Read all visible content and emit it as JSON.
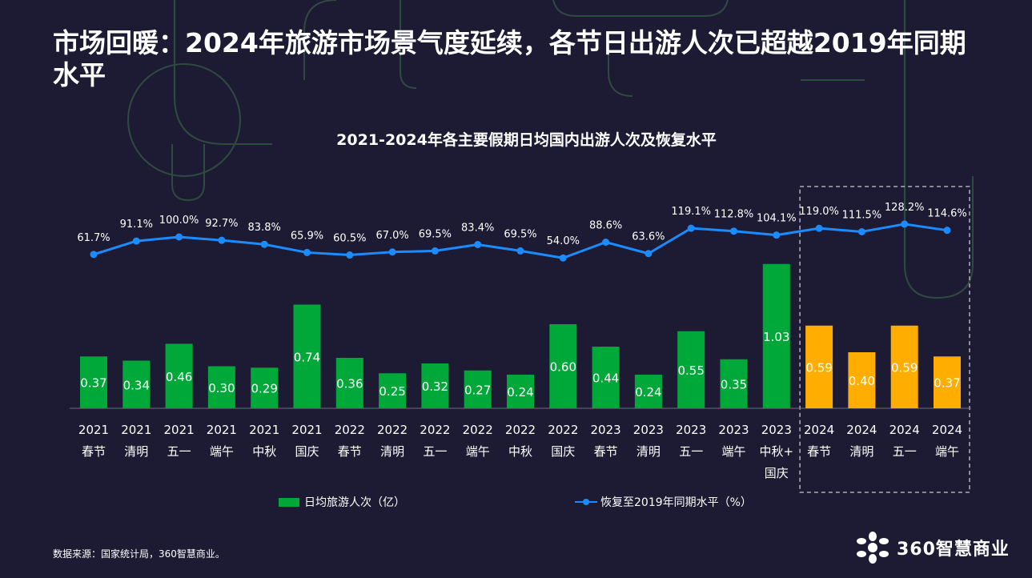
{
  "header": {
    "title": "市场回暖：2024年旅游市场景气度延续，各节日出游人次已超越2019年同期水平"
  },
  "chart_data": {
    "type": "bar",
    "title": "2021-2024年各主要假期日均国内出游人次及恢复水平",
    "categories": [
      [
        "2021",
        "春节"
      ],
      [
        "2021",
        "清明"
      ],
      [
        "2021",
        "五一"
      ],
      [
        "2021",
        "端午"
      ],
      [
        "2021",
        "中秋"
      ],
      [
        "2021",
        "国庆"
      ],
      [
        "2022",
        "春节"
      ],
      [
        "2022",
        "清明"
      ],
      [
        "2022",
        "五一"
      ],
      [
        "2022",
        "端午"
      ],
      [
        "2022",
        "中秋"
      ],
      [
        "2022",
        "国庆"
      ],
      [
        "2023",
        "春节"
      ],
      [
        "2023",
        "清明"
      ],
      [
        "2023",
        "五一"
      ],
      [
        "2023",
        "端午"
      ],
      [
        "2023",
        "中秋+",
        "国庆"
      ],
      [
        "2024",
        "春节"
      ],
      [
        "2024",
        "清明"
      ],
      [
        "2024",
        "五一"
      ],
      [
        "2024",
        "端午"
      ]
    ],
    "series": [
      {
        "name": "日均旅游人次（亿）",
        "kind": "bar",
        "values": [
          0.37,
          0.34,
          0.46,
          0.3,
          0.29,
          0.74,
          0.36,
          0.25,
          0.32,
          0.27,
          0.24,
          0.6,
          0.44,
          0.24,
          0.55,
          0.35,
          1.03,
          0.59,
          0.4,
          0.59,
          0.37
        ],
        "labels": [
          "0.37",
          "0.34",
          "0.46",
          "0.30",
          "0.29",
          "0.74",
          "0.36",
          "0.25",
          "0.32",
          "0.27",
          "0.24",
          "0.60",
          "0.44",
          "0.24",
          "0.55",
          "0.35",
          "1.03",
          "0.59",
          "0.40",
          "0.59",
          "0.37"
        ]
      },
      {
        "name": "恢复至2019年同期水平（%）",
        "kind": "line",
        "values": [
          61.7,
          91.1,
          100.0,
          92.7,
          83.8,
          65.9,
          60.5,
          67.0,
          69.5,
          83.4,
          69.5,
          54.0,
          88.6,
          63.6,
          119.1,
          112.8,
          104.1,
          119.0,
          111.5,
          128.2,
          114.6
        ],
        "labels": [
          "61.7%",
          "91.1%",
          "100.0%",
          "92.7%",
          "83.8%",
          "65.9%",
          "60.5%",
          "67.0%",
          "69.5%",
          "83.4%",
          "69.5%",
          "54.0%",
          "88.6%",
          "63.6%",
          "119.1%",
          "112.8%",
          "104.1%",
          "119.0%",
          "111.5%",
          "128.2%",
          "114.6%"
        ]
      }
    ],
    "highlight_start_index": 17,
    "colors": {
      "bar": "#00a83a",
      "bar_highlight": "#ffad00",
      "line": "#1a8cff"
    },
    "legend_position": "bottom"
  },
  "footer": {
    "source": "数据来源：国家统计局，360智慧商业。",
    "brand": "360智慧商业"
  },
  "colors": {
    "background": "#1c1b33",
    "decoration": "#2f4a3e"
  }
}
